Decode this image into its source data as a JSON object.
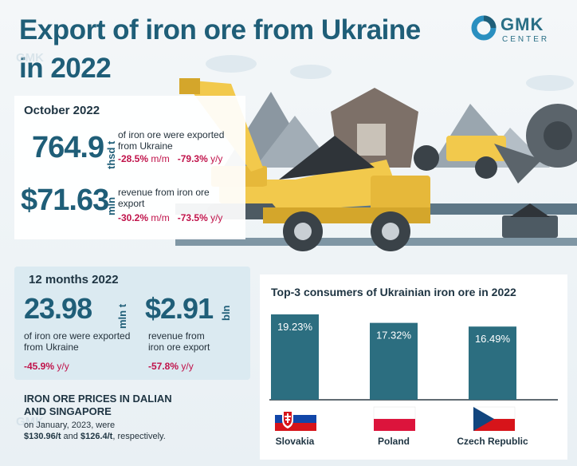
{
  "header": {
    "title_line1": "Export of iron ore from Ukraine",
    "title_line2": "in 2022",
    "logo_word": "GMK",
    "logo_sub": "CENTER",
    "watermark": "GMK"
  },
  "october": {
    "period": "October 2022",
    "export": {
      "value": "764.9",
      "unit": "thsd t",
      "desc_line1": "of iron ore were exported",
      "desc_line2": "from Ukraine",
      "mm": "-28.5%",
      "mm_unit": "m/m",
      "yy": "-79.3%",
      "yy_unit": "y/y"
    },
    "revenue": {
      "value": "$71.63",
      "unit": "mln",
      "desc_line1": "revenue from iron ore",
      "desc_line2": "export",
      "mm": "-30.2%",
      "mm_unit": "m/m",
      "yy": "-73.5%",
      "yy_unit": "y/y"
    }
  },
  "annual": {
    "period": "12 months 2022",
    "export": {
      "value": "23.98",
      "unit": "mln t",
      "desc_line1": "of iron ore were exported",
      "desc_line2": "from Ukraine",
      "yy": "-45.9%",
      "yy_unit": "y/y"
    },
    "revenue": {
      "value": "$2.91",
      "unit": "bln",
      "desc_line1": "revenue from",
      "desc_line2": "iron ore export",
      "yy": "-57.8%",
      "yy_unit": "y/y"
    }
  },
  "prices": {
    "title_line1": "IRON ORE PRICES IN DALIAN",
    "title_line2": "AND SINGAPORE",
    "text_line1": "on January, 2023, were",
    "value1": "$130.96/t",
    "and": "and",
    "value2": "$126.4/t",
    "suffix": ", respectively."
  },
  "colors": {
    "title": "#1f5e78",
    "bar": "#2c6e80",
    "negative": "#c0124a"
  },
  "chart_data": {
    "type": "bar",
    "title": "Top-3 consumers of Ukrainian iron ore in 2022",
    "categories": [
      "Slovakia",
      "Poland",
      "Czech Republic"
    ],
    "values": [
      19.23,
      17.32,
      16.49
    ],
    "value_labels": [
      "19.23%",
      "17.32%",
      "16.49%"
    ],
    "unit": "%",
    "xlabel": "",
    "ylabel": "",
    "grid": false,
    "legend": "none"
  }
}
